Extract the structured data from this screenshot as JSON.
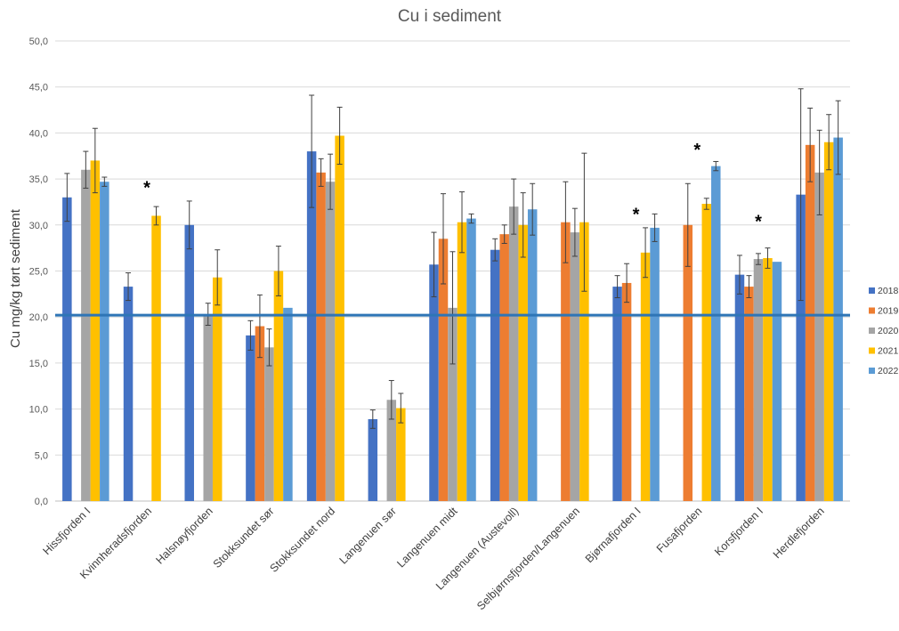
{
  "chart_data": {
    "type": "bar",
    "title": "Cu i sediment",
    "ylabel": "Cu mg/kg tørt sediment",
    "xlabel": "",
    "ylim": [
      0,
      50
    ],
    "yticks": [
      "0,0",
      "5,0",
      "10,0",
      "15,0",
      "20,0",
      "25,0",
      "30,0",
      "35,0",
      "40,0",
      "45,0",
      "50,0"
    ],
    "grid": true,
    "legend_position": "right",
    "reference_line": {
      "value": 20.2,
      "color": "#2E75B6"
    },
    "categories": [
      "Hissfjorden I",
      "Kvinnheradsfjorden",
      "Halsnøyfjorden",
      "Stokksundet sør",
      "Stokksundet nord",
      "Langenuen sør",
      "Langenuen midt",
      "Langenuen (Austevoll)",
      "Selbjørnsfjorden/Langenuen",
      "Bjørnafjorden I",
      "Fusafjorden",
      "Korsfjorden I",
      "Herdlefjorden"
    ],
    "annotations": [
      {
        "category": "Kvinnheradsfjorden",
        "text": "*",
        "y": 34.2
      },
      {
        "category": "Bjørnafjorden I",
        "text": "*",
        "y": 31.3
      },
      {
        "category": "Fusafjorden",
        "text": "*",
        "y": 38.3
      },
      {
        "category": "Korsfjorden I",
        "text": "*",
        "y": 30.5
      }
    ],
    "series": [
      {
        "name": "2018",
        "color": "#4472C4",
        "values": [
          33.0,
          23.3,
          30.0,
          18.0,
          38.0,
          8.9,
          25.7,
          27.3,
          null,
          23.3,
          null,
          24.6,
          33.3
        ],
        "errors": [
          2.6,
          1.5,
          2.6,
          1.6,
          6.1,
          1.0,
          3.5,
          1.2,
          null,
          1.2,
          null,
          2.1,
          11.5
        ]
      },
      {
        "name": "2019",
        "color": "#ED7D31",
        "values": [
          null,
          null,
          null,
          19.0,
          35.7,
          null,
          28.5,
          29.0,
          30.3,
          23.7,
          30.0,
          23.3,
          38.7
        ],
        "errors": [
          null,
          null,
          null,
          3.4,
          1.5,
          null,
          4.9,
          1.0,
          4.4,
          2.1,
          4.5,
          1.2,
          4.0
        ]
      },
      {
        "name": "2020",
        "color": "#A5A5A5",
        "values": [
          36.0,
          null,
          20.3,
          16.7,
          34.7,
          11.0,
          21.0,
          32.0,
          29.2,
          null,
          null,
          26.3,
          35.7
        ],
        "errors": [
          2.0,
          null,
          1.2,
          2.0,
          3.0,
          2.1,
          6.1,
          3.0,
          2.6,
          null,
          null,
          0.6,
          4.6
        ]
      },
      {
        "name": "2021",
        "color": "#FFC000",
        "values": [
          37.0,
          31.0,
          24.3,
          25.0,
          39.7,
          10.1,
          30.3,
          30.0,
          30.3,
          27.0,
          32.3,
          26.4,
          39.0
        ],
        "errors": [
          3.5,
          1.0,
          3.0,
          2.7,
          3.1,
          1.6,
          3.3,
          3.5,
          7.5,
          2.7,
          0.6,
          1.1,
          3.0
        ]
      },
      {
        "name": "2022",
        "color": "#5B9BD5",
        "values": [
          34.7,
          null,
          null,
          21.0,
          null,
          null,
          30.7,
          31.7,
          null,
          29.7,
          36.4,
          26.0,
          39.5
        ],
        "errors": [
          0.5,
          null,
          null,
          0.0,
          null,
          null,
          0.5,
          2.8,
          null,
          1.5,
          0.5,
          0.0,
          4.0
        ]
      }
    ]
  }
}
